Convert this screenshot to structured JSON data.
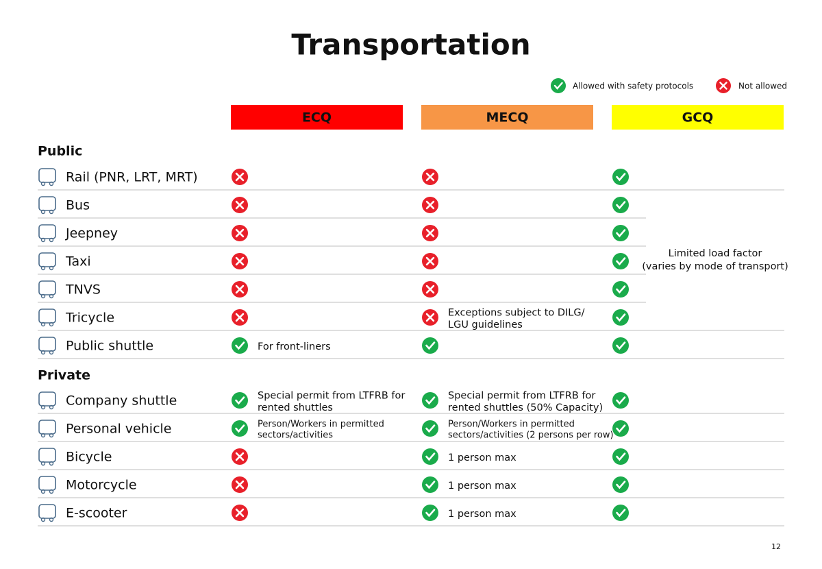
{
  "title": "Transportation",
  "legend": {
    "allowed": "Allowed with safety protocols",
    "not_allowed": "Not allowed"
  },
  "columns": [
    {
      "label": "ECQ",
      "color": "#ff0000",
      "text_color": "#ffffff"
    },
    {
      "label": "MECQ",
      "color": "#f79646",
      "text_color": "#000000"
    },
    {
      "label": "GCQ",
      "color": "#ffff00",
      "text_color": "#000000"
    }
  ],
  "sections": [
    {
      "title": "Public",
      "rows": [
        {
          "mode": "Rail (PNR, LRT, MRT)",
          "status": [
            false,
            false,
            true
          ]
        },
        {
          "mode": "Bus",
          "status": [
            false,
            false,
            true
          ]
        },
        {
          "mode": "Jeepney",
          "status": [
            false,
            false,
            true
          ]
        },
        {
          "mode": "Taxi",
          "status": [
            false,
            false,
            true
          ]
        },
        {
          "mode": "TNVS",
          "status": [
            false,
            false,
            true
          ]
        },
        {
          "mode": "Tricycle",
          "status": [
            false,
            false,
            true
          ],
          "notes": [
            {
              "column": 1,
              "lines": [
                "Exceptions subject to DILG/",
                "LGU guidelines"
              ]
            }
          ]
        },
        {
          "mode": "Public shuttle",
          "status": [
            true,
            true,
            true
          ],
          "notes": [
            {
              "column": 0,
              "lines": [
                "For front-liners"
              ]
            }
          ]
        }
      ]
    },
    {
      "title": "Private",
      "rows": [
        {
          "mode": "Company shuttle",
          "status": [
            true,
            true,
            true
          ],
          "notes": [
            {
              "column": 0,
              "lines": [
                "Special permit from LTFRB for",
                "rented shuttles"
              ]
            },
            {
              "column": 1,
              "lines": [
                "Special permit from LTFRB for",
                "rented shuttles (50% Capacity)"
              ]
            }
          ]
        },
        {
          "mode": "Personal vehicle",
          "status": [
            true,
            true,
            true
          ],
          "notes": [
            {
              "column": 0,
              "lines": [
                "Person/Workers in permitted",
                "sectors/activities"
              ]
            },
            {
              "column": 1,
              "lines": [
                "Person/Workers in permitted",
                "sectors/activities (2 persons per row)"
              ]
            }
          ]
        },
        {
          "mode": "Bicycle",
          "status": [
            false,
            true,
            true
          ],
          "notes": [
            {
              "column": 1,
              "lines": [
                "1 person max"
              ]
            }
          ]
        },
        {
          "mode": "Motorcycle",
          "status": [
            false,
            true,
            true
          ],
          "notes": [
            {
              "column": 1,
              "lines": [
                "1 person max"
              ]
            }
          ]
        },
        {
          "mode": "E-scooter",
          "status": [
            false,
            true,
            true
          ],
          "notes": [
            {
              "column": 1,
              "lines": [
                "1 person max"
              ]
            }
          ]
        }
      ]
    }
  ],
  "gcq_note": [
    "Limited load factor",
    "(varies by mode of transport)"
  ],
  "page_number": "12"
}
